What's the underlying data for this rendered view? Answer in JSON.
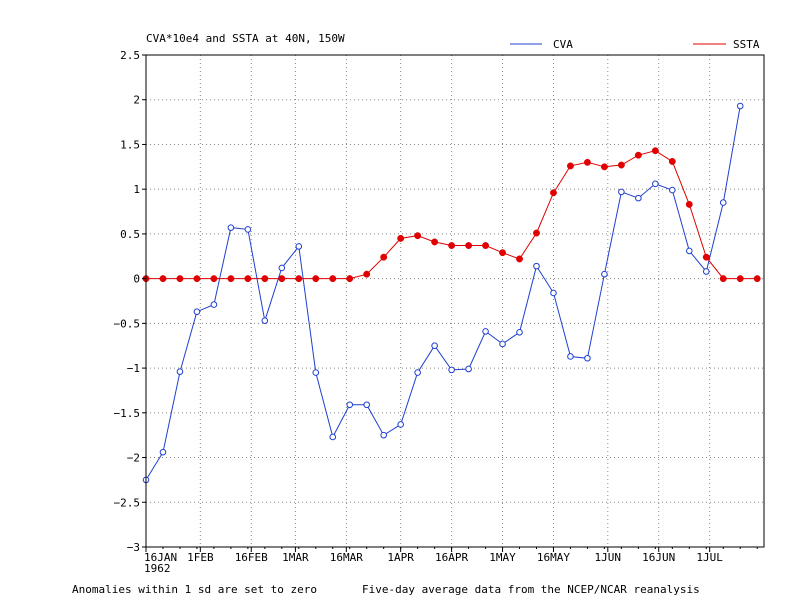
{
  "chart_data": {
    "type": "line",
    "title": "CVA*10e4 and SSTA at 40N, 150W",
    "ylim": [
      -3,
      2.5
    ],
    "yticks": [
      -3,
      -2.5,
      -2,
      -1.5,
      -1,
      -0.5,
      0,
      0.5,
      1,
      1.5,
      2,
      2.5
    ],
    "ytick_labels": [
      "−3",
      "−2.5",
      "−2",
      "−1.5",
      "−1",
      "−0.5",
      "0",
      "0.5",
      "1",
      "1.5",
      "2",
      "2.5"
    ],
    "x_day_range": [
      16,
      198
    ],
    "xticks": [
      {
        "label": "16JAN",
        "day": 16
      },
      {
        "label": "1FEB",
        "day": 32
      },
      {
        "label": "16FEB",
        "day": 47
      },
      {
        "label": "1MAR",
        "day": 60
      },
      {
        "label": "16MAR",
        "day": 75
      },
      {
        "label": "1APR",
        "day": 91
      },
      {
        "label": "16APR",
        "day": 106
      },
      {
        "label": "1MAY",
        "day": 121
      },
      {
        "label": "16MAY",
        "day": 136
      },
      {
        "label": "1JUN",
        "day": 152
      },
      {
        "label": "16JUN",
        "day": 167
      },
      {
        "label": "1JUL",
        "day": 182
      }
    ],
    "year_label": "1962",
    "grid": true,
    "legend": "top-right",
    "x_days": [
      16,
      21,
      26,
      31,
      36,
      41,
      46,
      51,
      56,
      61,
      66,
      71,
      76,
      81,
      86,
      91,
      96,
      101,
      106,
      111,
      116,
      121,
      126,
      131,
      136,
      141,
      146,
      151,
      156,
      161,
      166,
      171,
      176,
      181,
      186,
      191,
      196
    ],
    "series": [
      {
        "name": "CVA",
        "color": "#1f3fd0",
        "marker": "open-circle",
        "values": [
          -2.25,
          -1.94,
          -1.04,
          -0.37,
          -0.29,
          0.57,
          0.55,
          -0.47,
          0.12,
          0.36,
          -1.05,
          -1.77,
          -1.41,
          -1.41,
          -1.75,
          -1.63,
          -1.05,
          -0.75,
          -1.02,
          -1.01,
          -0.59,
          -0.73,
          -0.6,
          0.14,
          -0.16,
          -0.87,
          -0.89,
          0.05,
          0.97,
          0.9,
          1.06,
          0.99,
          0.31,
          0.08,
          0.85,
          1.93,
          null
        ]
      },
      {
        "name": "SSTA",
        "color": "#e00000",
        "marker": "filled-circle",
        "values": [
          0,
          0,
          0,
          0,
          0,
          0,
          0,
          0,
          0,
          0,
          0,
          0,
          0,
          0.05,
          0.24,
          0.45,
          0.48,
          0.41,
          0.37,
          0.37,
          0.37,
          0.29,
          0.22,
          0.51,
          0.96,
          1.26,
          1.3,
          1.25,
          1.27,
          1.38,
          1.43,
          1.31,
          0.83,
          0.24,
          0,
          0,
          0
        ]
      }
    ]
  },
  "footer": {
    "left": "Anomalies within 1 sd are set to zero",
    "right": "Five-day average data from the NCEP/NCAR reanalysis"
  }
}
